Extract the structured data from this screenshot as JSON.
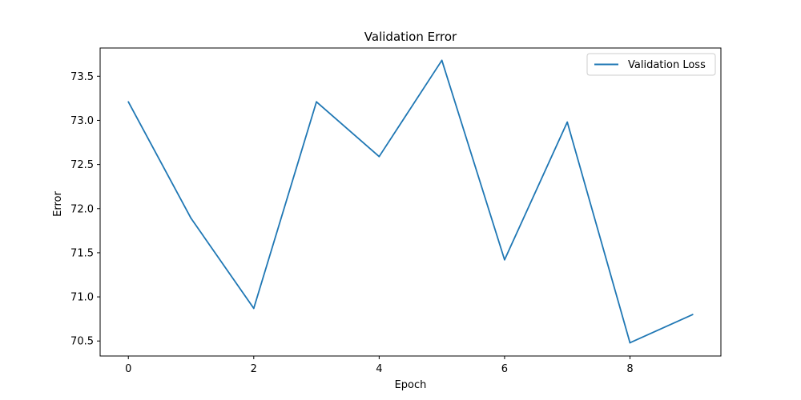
{
  "chart_data": {
    "type": "line",
    "title": "Validation Error",
    "xlabel": "Epoch",
    "ylabel": "Error",
    "xlim": [
      -0.45,
      9.45
    ],
    "ylim": [
      70.33,
      73.82
    ],
    "xticks": [
      0,
      2,
      4,
      6,
      8
    ],
    "yticks": [
      70.5,
      71.0,
      71.5,
      72.0,
      72.5,
      73.0,
      73.5
    ],
    "xtick_labels": [
      "0",
      "2",
      "4",
      "6",
      "8"
    ],
    "ytick_labels": [
      "70.5",
      "71.0",
      "71.5",
      "72.0",
      "72.5",
      "73.0",
      "73.5"
    ],
    "grid": false,
    "legend_position": "top-right",
    "series": [
      {
        "name": "Validation Loss",
        "color": "#1f77b4",
        "x": [
          0,
          1,
          2,
          3,
          4,
          5,
          6,
          7,
          8,
          9
        ],
        "values": [
          73.21,
          71.89,
          70.87,
          73.21,
          72.59,
          73.68,
          71.42,
          72.98,
          70.48,
          70.8
        ]
      }
    ]
  }
}
